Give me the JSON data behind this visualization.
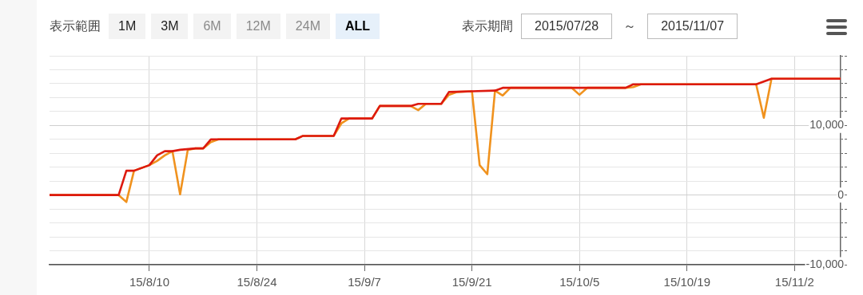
{
  "chart_data": {
    "type": "line",
    "annotations": [
      "表示範囲",
      "1M",
      "3M",
      "6M",
      "12M",
      "24M",
      "ALL",
      "表示期間",
      "2015/07/28",
      "～",
      "2015/11/07"
    ],
    "series": [
      {
        "color": "#f0921e",
        "x": [
          "2015-07-28",
          "2015-08-06",
          "2015-08-07",
          "2015-08-08",
          "2015-08-10",
          "2015-08-11",
          "2015-08-12",
          "2015-08-13",
          "2015-08-14",
          "2015-08-15",
          "2015-08-16",
          "2015-08-17",
          "2015-08-18",
          "2015-08-19",
          "2015-08-29",
          "2015-08-30",
          "2015-09-03",
          "2015-09-04",
          "2015-09-05",
          "2015-09-08",
          "2015-09-09",
          "2015-09-13",
          "2015-09-14",
          "2015-09-15",
          "2015-09-17",
          "2015-09-18",
          "2015-09-19",
          "2015-09-21",
          "2015-09-22",
          "2015-09-23",
          "2015-09-24",
          "2015-09-25",
          "2015-09-26",
          "2015-10-04",
          "2015-10-05",
          "2015-10-06",
          "2015-10-11",
          "2015-10-12",
          "2015-10-13",
          "2015-10-28",
          "2015-10-29",
          "2015-10-30",
          "2015-11-08"
        ],
        "values": [
          0,
          0,
          -1000,
          3500,
          4300,
          4900,
          5700,
          6300,
          100,
          6500,
          6700,
          6700,
          7600,
          8000,
          8000,
          8500,
          8500,
          10300,
          11000,
          11000,
          12800,
          12800,
          12200,
          13100,
          13100,
          14400,
          14800,
          14900,
          4300,
          3000,
          15000,
          14300,
          15400,
          15400,
          14400,
          15400,
          15400,
          15500,
          15900,
          15900,
          11100,
          16700,
          16700
        ]
      },
      {
        "color": "#dd1a0f",
        "x": [
          "2015-07-28",
          "2015-08-06",
          "2015-08-07",
          "2015-08-08",
          "2015-08-10",
          "2015-08-11",
          "2015-08-12",
          "2015-08-13",
          "2015-08-14",
          "2015-08-16",
          "2015-08-17",
          "2015-08-18",
          "2015-08-29",
          "2015-08-30",
          "2015-09-03",
          "2015-09-04",
          "2015-09-08",
          "2015-09-09",
          "2015-09-13",
          "2015-09-14",
          "2015-09-17",
          "2015-09-18",
          "2015-09-21",
          "2015-09-24",
          "2015-09-25",
          "2015-10-11",
          "2015-10-12",
          "2015-10-28",
          "2015-10-30",
          "2015-11-08"
        ],
        "values": [
          0,
          0,
          3500,
          3500,
          4300,
          5700,
          6300,
          6300,
          6500,
          6700,
          6700,
          8000,
          8000,
          8500,
          8500,
          11000,
          11000,
          12800,
          12800,
          13100,
          13100,
          14800,
          14900,
          15000,
          15400,
          15400,
          15900,
          15900,
          16700,
          16700
        ]
      }
    ],
    "xlim": [
      "2015-07-28",
      "2015-11-08"
    ],
    "xticks": [
      {
        "value": "2015-08-10",
        "label": "15/8/10"
      },
      {
        "value": "2015-08-24",
        "label": "15/8/24"
      },
      {
        "value": "2015-09-07",
        "label": "15/9/7"
      },
      {
        "value": "2015-09-21",
        "label": "15/9/21"
      },
      {
        "value": "2015-10-05",
        "label": "15/10/5"
      },
      {
        "value": "2015-10-19",
        "label": "15/10/19"
      },
      {
        "value": "2015-11-02",
        "label": "15/11/2"
      }
    ],
    "ylim": [
      -10000,
      20000
    ],
    "yticks": [
      {
        "value": -10000,
        "label": "-10,000"
      },
      {
        "value": -8000,
        "label": null
      },
      {
        "value": -6000,
        "label": null
      },
      {
        "value": -4000,
        "label": null
      },
      {
        "value": -2000,
        "label": null
      },
      {
        "value": 0,
        "label": "0"
      },
      {
        "value": 2000,
        "label": null
      },
      {
        "value": 4000,
        "label": null
      },
      {
        "value": 6000,
        "label": null
      },
      {
        "value": 8000,
        "label": null
      },
      {
        "value": 10000,
        "label": "10,000"
      },
      {
        "value": 12000,
        "label": null
      },
      {
        "value": 14000,
        "label": null
      },
      {
        "value": 16000,
        "label": null
      },
      {
        "value": 18000,
        "label": null
      },
      {
        "value": 20000,
        "label": null
      }
    ],
    "grid": true,
    "legend": false,
    "marker": "none",
    "line_style": "solid"
  }
}
